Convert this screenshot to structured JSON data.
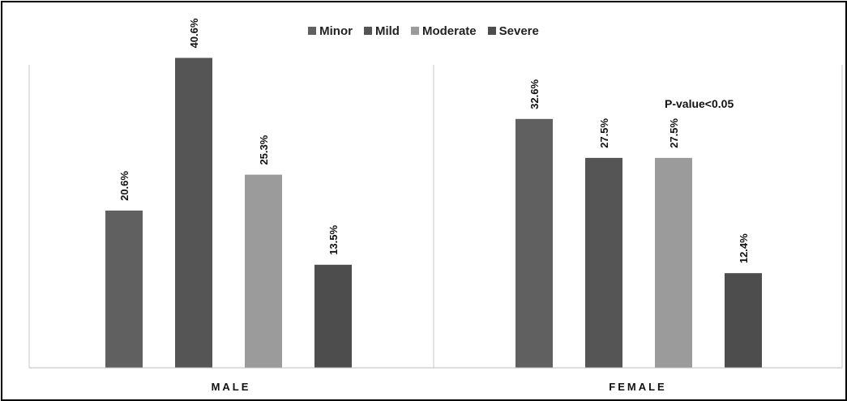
{
  "chart_data": {
    "type": "bar",
    "groups": [
      "MALE",
      "FEMALE"
    ],
    "series": [
      {
        "name": "Minor",
        "color": "#606060",
        "values": [
          20.6,
          32.6
        ],
        "labels": [
          "20.6%",
          "32.6%"
        ]
      },
      {
        "name": "Mild",
        "color": "#555555",
        "values": [
          40.6,
          27.5
        ],
        "labels": [
          "40.6%",
          "27.5%"
        ]
      },
      {
        "name": "Moderate",
        "color": "#9b9b9b",
        "values": [
          25.3,
          27.5
        ],
        "labels": [
          "25.3%",
          "27.5%"
        ]
      },
      {
        "name": "Severe",
        "color": "#4d4d4d",
        "values": [
          13.5,
          12.4
        ],
        "labels": [
          "13.5%",
          "12.4%"
        ]
      }
    ],
    "ylim": [
      0,
      45
    ],
    "grid": false,
    "legend_position": "top",
    "annotation": "P-value<0.05"
  }
}
